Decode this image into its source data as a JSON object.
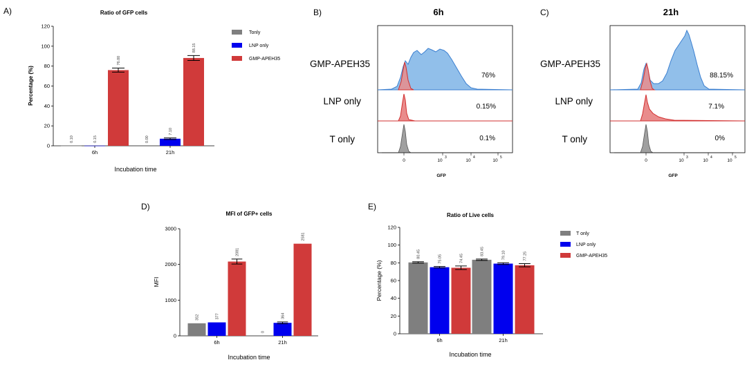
{
  "colors": {
    "tonly": "#7f7f7f",
    "lnp": "#0000ee",
    "gmp": "#d03a3a",
    "flow_blue": "#91bfea",
    "flow_blue_line": "#3b7fd0",
    "flow_red": "#e98c8c",
    "flow_red_line": "#d22f2f",
    "flow_gray": "#a0a0a0"
  },
  "panels": {
    "A": {
      "letter": "A)"
    },
    "B": {
      "letter": "B)"
    },
    "C": {
      "letter": "C)"
    },
    "D": {
      "letter": "D)"
    },
    "E": {
      "letter": "E)"
    }
  },
  "chart_data": [
    {
      "id": "A",
      "type": "bar",
      "title": "Ratio of GFP cells",
      "xlabel": "Incubation time",
      "ylabel": "Percentage (%)",
      "categories": [
        "6h",
        "21h"
      ],
      "ylim": [
        0,
        120
      ],
      "yticks": [
        "0",
        "20",
        "40",
        "60",
        "80",
        "100",
        "120"
      ],
      "legend_position": "top-right",
      "series": [
        {
          "name": "Tonly",
          "values": [
            0.1,
            0.0
          ],
          "labels": [
            "0.10",
            "0.00"
          ],
          "errors": [
            0,
            0
          ]
        },
        {
          "name": "LNP only",
          "values": [
            0.15,
            7.1
          ],
          "labels": [
            "0.15",
            "7.10"
          ],
          "errors": [
            0,
            0.8
          ]
        },
        {
          "name": "GMP-APEH35",
          "values": [
            76.0,
            88.15
          ],
          "labels": [
            "76.00",
            "88.15"
          ],
          "errors": [
            2,
            2.5
          ]
        }
      ]
    },
    {
      "id": "D",
      "type": "bar",
      "title": "MFI of GFP+ cells",
      "xlabel": "Incubation time",
      "ylabel": "MFI",
      "categories": [
        "6h",
        "21h"
      ],
      "ylim": [
        0,
        3000
      ],
      "yticks": [
        "0",
        "1000",
        "2000",
        "3000"
      ],
      "series": [
        {
          "name": "T only",
          "values": [
            352,
            0
          ],
          "labels": [
            "352",
            "0"
          ],
          "errors": [
            0,
            0
          ]
        },
        {
          "name": "LNP only",
          "values": [
            377,
            364
          ],
          "labels": [
            "377",
            "364"
          ],
          "errors": [
            0,
            25
          ]
        },
        {
          "name": "GMP-APEH35",
          "values": [
            2081,
            2581
          ],
          "labels": [
            "2081",
            "2581"
          ],
          "errors": [
            70,
            0
          ]
        }
      ]
    },
    {
      "id": "E",
      "type": "bar",
      "title": "Ratio of Live cells",
      "xlabel": "Incubation time",
      "ylabel": "Percentage (%)",
      "categories": [
        "6h",
        "21h"
      ],
      "ylim": [
        0,
        120
      ],
      "yticks": [
        "0",
        "20",
        "40",
        "60",
        "80",
        "100",
        "120"
      ],
      "legend_position": "top-right",
      "series": [
        {
          "name": "T only",
          "values": [
            80.45,
            83.45
          ],
          "labels": [
            "80.45",
            "83.45"
          ],
          "errors": [
            0.8,
            0.8
          ]
        },
        {
          "name": "LNP only",
          "values": [
            75.05,
            79.1
          ],
          "labels": [
            "75.05",
            "79.10"
          ],
          "errors": [
            0.8,
            1.0
          ]
        },
        {
          "name": "GMP-APEH35",
          "values": [
            74.45,
            77.25
          ],
          "labels": [
            "74.45",
            "77.25"
          ],
          "errors": [
            2.0,
            1.8
          ]
        }
      ]
    }
  ],
  "flow": [
    {
      "id": "B",
      "title": "6h",
      "xlabel": "GFP",
      "xticks": [
        "0",
        "10",
        "10",
        "10"
      ],
      "xtick_exps": [
        "",
        "3",
        "4",
        "5"
      ],
      "rows": [
        {
          "label": "GMP-APEH35",
          "pct": "76%"
        },
        {
          "label": "LNP only",
          "pct": "0.15%"
        },
        {
          "label": "T only",
          "pct": "0.1%"
        }
      ]
    },
    {
      "id": "C",
      "title": "21h",
      "xlabel": "GFP",
      "xticks": [
        "0",
        "10",
        "10",
        "10"
      ],
      "xtick_exps": [
        "",
        "3",
        "4",
        "5"
      ],
      "rows": [
        {
          "label": "GMP-APEH35",
          "pct": "88.15%"
        },
        {
          "label": "LNP only",
          "pct": "7.1%"
        },
        {
          "label": "T only",
          "pct": "0%"
        }
      ]
    }
  ]
}
